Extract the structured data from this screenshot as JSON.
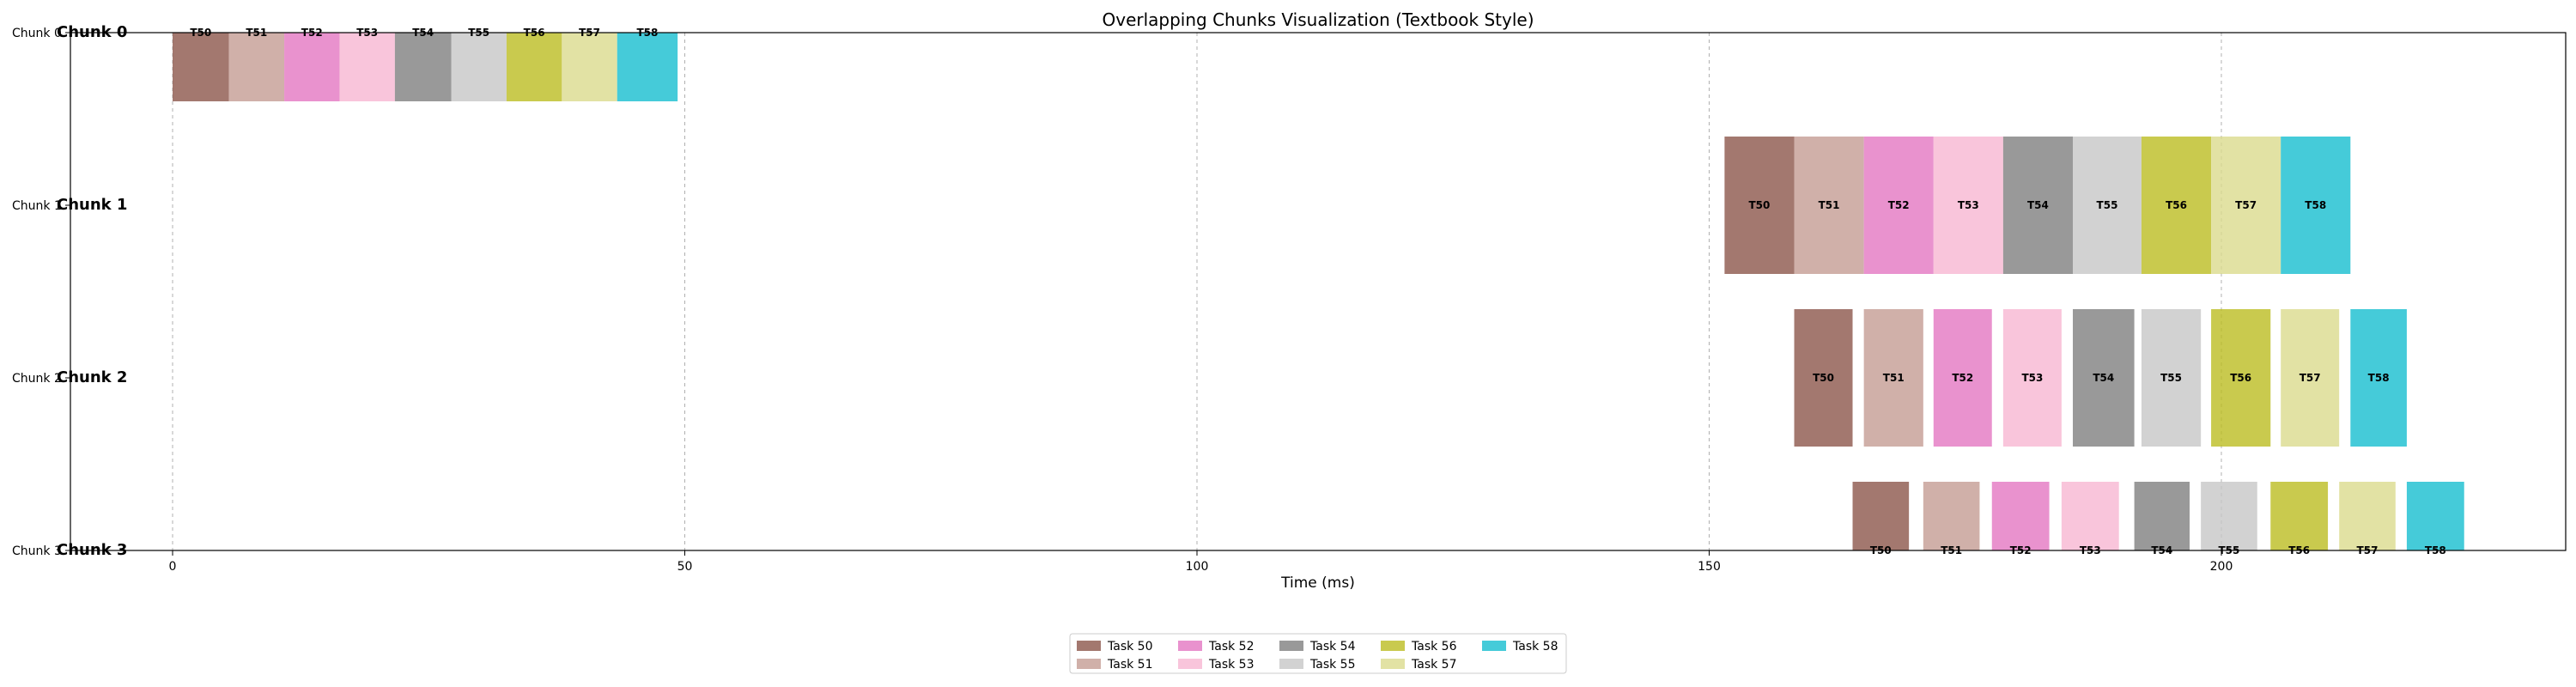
{
  "chart_data": {
    "type": "bar",
    "title": "Overlapping Chunks Visualization (Textbook Style)",
    "xlabel": "Time (ms)",
    "xlim": [
      -10,
      234
    ],
    "xticks": [
      0,
      50,
      100,
      150,
      200
    ],
    "grid_x": true,
    "legend_position": "bottom-center",
    "tasks": [
      {
        "name": "Task 50",
        "short": "T50",
        "color": "#8c564b"
      },
      {
        "name": "Task 51",
        "short": "T51",
        "color": "#c49c94"
      },
      {
        "name": "Task 52",
        "short": "T52",
        "color": "#e377c2"
      },
      {
        "name": "Task 53",
        "short": "T53",
        "color": "#f7b6d2"
      },
      {
        "name": "Task 54",
        "short": "T54",
        "color": "#7f7f7f"
      },
      {
        "name": "Task 55",
        "short": "T55",
        "color": "#c7c7c7"
      },
      {
        "name": "Task 56",
        "short": "T56",
        "color": "#bcbd22"
      },
      {
        "name": "Task 57",
        "short": "T57",
        "color": "#dbdb8d"
      },
      {
        "name": "Task 58",
        "short": "T58",
        "color": "#17becf"
      }
    ],
    "chunks": [
      {
        "label": "Chunk 0",
        "bars": [
          {
            "start": 0.0,
            "end": 5.5
          },
          {
            "start": 5.5,
            "end": 10.9
          },
          {
            "start": 10.9,
            "end": 16.3
          },
          {
            "start": 16.3,
            "end": 21.7
          },
          {
            "start": 21.7,
            "end": 27.2
          },
          {
            "start": 27.2,
            "end": 32.6
          },
          {
            "start": 32.6,
            "end": 38.0
          },
          {
            "start": 38.0,
            "end": 43.4
          },
          {
            "start": 43.4,
            "end": 49.3
          }
        ]
      },
      {
        "label": "Chunk 1",
        "bars": [
          {
            "start": 151.5,
            "end": 158.3
          },
          {
            "start": 158.3,
            "end": 165.1
          },
          {
            "start": 165.1,
            "end": 171.9
          },
          {
            "start": 171.9,
            "end": 178.7
          },
          {
            "start": 178.7,
            "end": 185.5
          },
          {
            "start": 185.5,
            "end": 192.2
          },
          {
            "start": 192.2,
            "end": 199.0
          },
          {
            "start": 199.0,
            "end": 205.8
          },
          {
            "start": 205.8,
            "end": 212.6
          }
        ]
      },
      {
        "label": "Chunk 2",
        "bars": [
          {
            "start": 158.3,
            "end": 164.0
          },
          {
            "start": 165.1,
            "end": 170.9
          },
          {
            "start": 171.9,
            "end": 177.6
          },
          {
            "start": 178.7,
            "end": 184.4
          },
          {
            "start": 185.5,
            "end": 191.5
          },
          {
            "start": 192.2,
            "end": 198.0
          },
          {
            "start": 199.0,
            "end": 204.8
          },
          {
            "start": 205.8,
            "end": 211.5
          },
          {
            "start": 212.6,
            "end": 218.1
          }
        ]
      },
      {
        "label": "Chunk 3",
        "bars": [
          {
            "start": 164.0,
            "end": 169.5
          },
          {
            "start": 170.9,
            "end": 176.4
          },
          {
            "start": 177.6,
            "end": 183.2
          },
          {
            "start": 184.4,
            "end": 190.0
          },
          {
            "start": 191.5,
            "end": 196.9
          },
          {
            "start": 198.0,
            "end": 203.5
          },
          {
            "start": 204.8,
            "end": 210.4
          },
          {
            "start": 211.5,
            "end": 217.0
          },
          {
            "start": 218.1,
            "end": 223.7
          }
        ]
      }
    ]
  }
}
